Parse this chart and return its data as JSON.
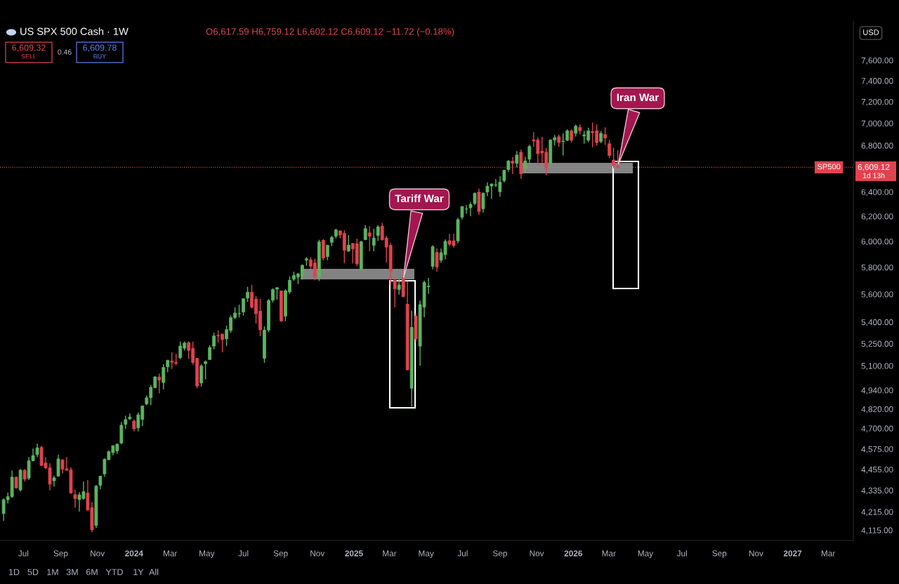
{
  "chart_data": {
    "type": "candlestick",
    "title": "US SPX 500 Cash · 1W",
    "log": true,
    "xlim": [
      "2023-05-23",
      "2027-04-12"
    ],
    "xticks": [
      {
        "value": "2023-07-01",
        "label": "Jul"
      },
      {
        "value": "2023-09-01",
        "label": "Sep"
      },
      {
        "value": "2023-11-01",
        "label": "Nov"
      },
      {
        "value": "2024-01-01",
        "label": "2024"
      },
      {
        "value": "2024-03-01",
        "label": "Mar"
      },
      {
        "value": "2024-05-01",
        "label": "May"
      },
      {
        "value": "2024-07-01",
        "label": "Jul"
      },
      {
        "value": "2024-09-01",
        "label": "Sep"
      },
      {
        "value": "2024-11-01",
        "label": "Nov"
      },
      {
        "value": "2025-01-01",
        "label": "2025"
      },
      {
        "value": "2025-03-01",
        "label": "Mar"
      },
      {
        "value": "2025-05-01",
        "label": "May"
      },
      {
        "value": "2025-07-01",
        "label": "Jul"
      },
      {
        "value": "2025-09-01",
        "label": "Sep"
      },
      {
        "value": "2025-11-01",
        "label": "Nov"
      },
      {
        "value": "2026-01-01",
        "label": "2026"
      },
      {
        "value": "2026-03-01",
        "label": "Mar"
      },
      {
        "value": "2026-05-01",
        "label": "May"
      },
      {
        "value": "2026-07-01",
        "label": "Jul"
      },
      {
        "value": "2026-09-01",
        "label": "Sep"
      },
      {
        "value": "2026-11-01",
        "label": "Nov"
      },
      {
        "value": "2027-01-01",
        "label": "2027"
      },
      {
        "value": "2027-03-01",
        "label": "Mar"
      }
    ],
    "ylim": [
      4060,
      8000
    ],
    "yticks": [
      {
        "value": 4115,
        "label": "4,115.00"
      },
      {
        "value": 4215,
        "label": "4,215.00"
      },
      {
        "value": 4335,
        "label": "4,335.00"
      },
      {
        "value": 4455,
        "label": "4,455.00"
      },
      {
        "value": 4575,
        "label": "4,575.00"
      },
      {
        "value": 4700,
        "label": "4,700.00"
      },
      {
        "value": 4820,
        "label": "4,820.00"
      },
      {
        "value": 4940,
        "label": "4,940.00"
      },
      {
        "value": 5100,
        "label": "5,100.00"
      },
      {
        "value": 5250,
        "label": "5,250.00"
      },
      {
        "value": 5400,
        "label": "5,400.00"
      },
      {
        "value": 5600,
        "label": "5,600.00"
      },
      {
        "value": 5800,
        "label": "5,800.00"
      },
      {
        "value": 6000,
        "label": "6,000.00"
      },
      {
        "value": 6200,
        "label": "6,200.00"
      },
      {
        "value": 6400,
        "label": "6,400.00"
      },
      {
        "value": 6800,
        "label": "6,800.00"
      },
      {
        "value": 7000,
        "label": "7,000.00"
      },
      {
        "value": 7200,
        "label": "7,200.00"
      },
      {
        "value": 7400,
        "label": "7,400.00"
      },
      {
        "value": 7600,
        "label": "7,600.00"
      }
    ],
    "ref_lines": [
      {
        "axis": "y",
        "value": 6609.12,
        "label": "SP500",
        "color": "#e0434f",
        "line_style": "dotted"
      }
    ],
    "annotations": [
      {
        "text": "Iran War",
        "x": "2026-03-16",
        "y": 6620
      },
      {
        "text": "Tariff War",
        "x": "2025-03-24",
        "y": 5710
      },
      "O6,617.59 H6,759.12 L6,602.12 C6,609.12 −11.72 (−0.18%)",
      "6,609.32",
      "SELL",
      "0.46",
      "6,609.78",
      "BUY",
      "USD",
      "6,609.12",
      "1d 13h",
      "1D",
      "5D",
      "1M",
      "3M",
      "6M",
      "YTD",
      "1Y",
      "All"
    ],
    "series": [
      {
        "color": "#5cb460",
        "x": [
          "2023-05-29",
          "2023-06-05",
          "2023-06-12",
          "2023-06-26",
          "2023-07-10",
          "2023-07-17",
          "2023-07-24",
          "2023-08-21",
          "2023-08-28",
          "2023-10-02",
          "2023-10-09",
          "2023-10-30",
          "2023-11-06",
          "2023-11-13",
          "2023-11-20",
          "2023-11-27",
          "2023-12-04",
          "2023-12-11",
          "2023-12-18",
          "2023-12-25",
          "2024-01-08",
          "2024-01-15",
          "2024-01-22",
          "2024-01-29",
          "2024-02-05",
          "2024-02-19",
          "2024-02-26",
          "2024-03-18",
          "2024-03-25",
          "2024-04-22",
          "2024-04-29",
          "2024-05-06",
          "2024-05-13",
          "2024-06-03",
          "2024-06-10",
          "2024-06-17",
          "2024-06-24",
          "2024-07-01",
          "2024-07-08",
          "2024-08-05",
          "2024-08-12",
          "2024-08-19",
          "2024-08-26",
          "2024-09-09",
          "2024-09-16",
          "2024-09-23",
          "2024-09-30",
          "2024-10-07",
          "2024-10-14",
          "2024-11-04",
          "2024-11-18",
          "2024-11-25",
          "2024-12-02",
          "2024-12-23",
          "2025-01-13",
          "2025-01-20",
          "2025-02-03",
          "2025-02-10",
          "2025-03-17",
          "2025-04-07",
          "2025-04-21",
          "2025-04-28",
          "2025-05-05",
          "2025-05-12",
          "2025-05-26",
          "2025-06-02",
          "2025-06-23",
          "2025-06-30",
          "2025-07-07",
          "2025-07-14",
          "2025-07-21",
          "2025-08-04",
          "2025-08-11",
          "2025-08-18",
          "2025-08-25",
          "2025-09-01",
          "2025-09-08",
          "2025-09-15",
          "2025-09-29",
          "2025-10-13",
          "2025-10-20",
          "2025-11-24",
          "2025-12-01",
          "2025-12-15",
          "2025-12-22",
          "2026-01-05",
          "2026-01-19",
          "2026-01-26",
          "2026-02-16"
        ],
        "ohlc": [
          [
            4205,
            4290,
            4166,
            4282
          ],
          [
            4282,
            4322,
            4261,
            4299
          ],
          [
            4299,
            4448,
            4292,
            4410
          ],
          [
            4337,
            4458,
            4328,
            4450
          ],
          [
            4404,
            4527,
            4394,
            4505
          ],
          [
            4505,
            4578,
            4502,
            4536
          ],
          [
            4543,
            4607,
            4527,
            4582
          ],
          [
            4389,
            4418,
            4356,
            4406
          ],
          [
            4416,
            4541,
            4415,
            4516
          ],
          [
            4284,
            4324,
            4216,
            4309
          ],
          [
            4289,
            4385,
            4283,
            4327
          ],
          [
            4140,
            4366,
            4127,
            4358
          ],
          [
            4364,
            4418,
            4340,
            4415
          ],
          [
            4429,
            4521,
            4412,
            4514
          ],
          [
            4511,
            4568,
            4511,
            4559
          ],
          [
            4554,
            4595,
            4537,
            4595
          ],
          [
            4564,
            4609,
            4546,
            4604
          ],
          [
            4611,
            4739,
            4604,
            4719
          ],
          [
            4725,
            4778,
            4697,
            4754
          ],
          [
            4759,
            4793,
            4751,
            4770
          ],
          [
            4703,
            4798,
            4682,
            4784
          ],
          [
            4756,
            4842,
            4714,
            4840
          ],
          [
            4853,
            4907,
            4845,
            4891
          ],
          [
            4892,
            4975,
            4845,
            4959
          ],
          [
            4957,
            5030,
            4953,
            5027
          ],
          [
            4990,
            5111,
            4946,
            5089
          ],
          [
            5094,
            5140,
            5057,
            5137
          ],
          [
            5154,
            5265,
            5145,
            5234
          ],
          [
            5219,
            5265,
            5203,
            5254
          ],
          [
            4987,
            5112,
            4963,
            5100
          ],
          [
            5114,
            5136,
            5011,
            5128
          ],
          [
            5142,
            5239,
            5142,
            5223
          ],
          [
            5233,
            5325,
            5211,
            5303
          ],
          [
            5283,
            5375,
            5234,
            5347
          ],
          [
            5341,
            5447,
            5324,
            5431
          ],
          [
            5432,
            5505,
            5420,
            5464
          ],
          [
            5460,
            5524,
            5433,
            5460
          ],
          [
            5471,
            5570,
            5446,
            5567
          ],
          [
            5572,
            5655,
            5544,
            5615
          ],
          [
            5151,
            5370,
            5120,
            5344
          ],
          [
            5344,
            5564,
            5329,
            5554
          ],
          [
            5557,
            5643,
            5540,
            5634
          ],
          [
            5637,
            5651,
            5561,
            5648
          ],
          [
            5442,
            5636,
            5406,
            5626
          ],
          [
            5616,
            5733,
            5604,
            5703
          ],
          [
            5711,
            5767,
            5698,
            5738
          ],
          [
            5726,
            5758,
            5674,
            5751
          ],
          [
            5737,
            5822,
            5707,
            5815
          ],
          [
            5855,
            5878,
            5813,
            5865
          ],
          [
            5724,
            6012,
            5697,
            5996
          ],
          [
            5882,
            5974,
            5854,
            5969
          ],
          [
            5992,
            6044,
            5963,
            6032
          ],
          [
            6041,
            6099,
            6024,
            6090
          ],
          [
            5924,
            6049,
            5919,
            5971
          ],
          [
            5788,
            6005,
            5773,
            5997
          ],
          [
            6014,
            6128,
            6009,
            6101
          ],
          [
            5969,
            6101,
            5923,
            6026
          ],
          [
            6046,
            6128,
            6004,
            6115
          ],
          [
            5635,
            5711,
            5597,
            5668
          ],
          [
            4953,
            5482,
            4835,
            5363
          ],
          [
            5233,
            5553,
            5101,
            5525
          ],
          [
            5507,
            5700,
            5434,
            5687
          ],
          [
            5655,
            5720,
            5602,
            5660
          ],
          [
            5808,
            5969,
            5786,
            5958
          ],
          [
            5854,
            5944,
            5834,
            5912
          ],
          [
            5897,
            6016,
            5861,
            6000
          ],
          [
            6004,
            6187,
            5986,
            6173
          ],
          [
            6193,
            6284,
            6174,
            6279
          ],
          [
            6259,
            6291,
            6220,
            6260
          ],
          [
            6269,
            6315,
            6201,
            6297
          ],
          [
            6304,
            6395,
            6290,
            6389
          ],
          [
            6261,
            6395,
            6230,
            6389
          ],
          [
            6400,
            6481,
            6364,
            6449
          ],
          [
            6450,
            6471,
            6343,
            6467
          ],
          [
            6457,
            6509,
            6441,
            6460
          ],
          [
            6402,
            6532,
            6360,
            6482
          ],
          [
            6495,
            6588,
            6480,
            6584
          ],
          [
            6590,
            6672,
            6570,
            6664
          ],
          [
            6643,
            6751,
            6610,
            6716
          ],
          [
            6600,
            6700,
            6570,
            6664
          ],
          [
            6680,
            6808,
            6645,
            6792
          ],
          [
            6640,
            6855,
            6620,
            6849
          ],
          [
            6849,
            6895,
            6800,
            6870
          ],
          [
            6835,
            6909,
            6712,
            6840
          ],
          [
            6847,
            6945,
            6840,
            6932
          ],
          [
            6909,
            6986,
            6880,
            6974
          ],
          [
            6885,
            6932,
            6816,
            6895
          ],
          [
            6847,
            6960,
            6830,
            6932
          ],
          [
            6836,
            6930,
            6820,
            6909
          ]
        ]
      },
      {
        "color": "#e0434f",
        "x": [
          "2023-06-19",
          "2023-07-03",
          "2023-07-31",
          "2023-08-07",
          "2023-08-14",
          "2023-09-04",
          "2023-09-11",
          "2023-09-18",
          "2023-09-25",
          "2023-10-16",
          "2023-10-23",
          "2024-01-01",
          "2024-02-12",
          "2024-03-04",
          "2024-03-11",
          "2024-04-01",
          "2024-04-08",
          "2024-04-15",
          "2024-05-20",
          "2024-05-27",
          "2024-07-15",
          "2024-07-22",
          "2024-07-29",
          "2024-09-02",
          "2024-10-21",
          "2024-10-28",
          "2024-11-11",
          "2024-12-09",
          "2024-12-16",
          "2024-12-30",
          "2025-01-06",
          "2025-01-27",
          "2025-02-17",
          "2025-02-24",
          "2025-03-03",
          "2025-03-10",
          "2025-03-24",
          "2025-03-31",
          "2025-04-14",
          "2025-05-19",
          "2025-06-09",
          "2025-06-16",
          "2025-07-28",
          "2025-09-22",
          "2025-10-06",
          "2025-10-27",
          "2025-11-03",
          "2025-11-10",
          "2025-11-17",
          "2025-12-08",
          "2025-12-29",
          "2026-01-12",
          "2026-02-02",
          "2026-02-09",
          "2026-02-23",
          "2026-03-02",
          "2026-03-09",
          "2026-03-16"
        ],
        "ohlc": [
          [
            4410,
            4413,
            4345,
            4348
          ],
          [
            4450,
            4456,
            4385,
            4399
          ],
          [
            4585,
            4595,
            4474,
            4478
          ],
          [
            4492,
            4527,
            4457,
            4464
          ],
          [
            4464,
            4491,
            4335,
            4370
          ],
          [
            4510,
            4515,
            4431,
            4457
          ],
          [
            4458,
            4527,
            4448,
            4450
          ],
          [
            4453,
            4466,
            4316,
            4320
          ],
          [
            4310,
            4338,
            4238,
            4288
          ],
          [
            4320,
            4393,
            4223,
            4224
          ],
          [
            4238,
            4268,
            4104,
            4117
          ],
          [
            4745,
            4755,
            4682,
            4697
          ],
          [
            5026,
            5048,
            4920,
            5006
          ],
          [
            5132,
            5190,
            5080,
            5124
          ],
          [
            5123,
            5180,
            5104,
            5117
          ],
          [
            5257,
            5265,
            5146,
            5204
          ],
          [
            5218,
            5264,
            5107,
            5123
          ],
          [
            5150,
            5152,
            4953,
            4967
          ],
          [
            5308,
            5342,
            5256,
            5305
          ],
          [
            5316,
            5316,
            5191,
            5278
          ],
          [
            5614,
            5669,
            5497,
            5505
          ],
          [
            5565,
            5585,
            5390,
            5459
          ],
          [
            5477,
            5566,
            5302,
            5346
          ],
          [
            5624,
            5626,
            5402,
            5408
          ],
          [
            5857,
            5878,
            5787,
            5808
          ],
          [
            5833,
            5866,
            5703,
            5729
          ],
          [
            6008,
            6018,
            5853,
            5871
          ],
          [
            6083,
            6085,
            6024,
            6051
          ],
          [
            6063,
            6086,
            5832,
            5931
          ],
          [
            5984,
            5985,
            5829,
            5942
          ],
          [
            5982,
            6021,
            5809,
            5827
          ],
          [
            6067,
            6120,
            5923,
            6041
          ],
          [
            6121,
            6147,
            6008,
            6013
          ],
          [
            6026,
            6043,
            5837,
            5955
          ],
          [
            5969,
            5987,
            5666,
            5770
          ],
          [
            5705,
            5705,
            5505,
            5639
          ],
          [
            5718,
            5786,
            5581,
            5581
          ],
          [
            5527,
            5695,
            5069,
            5074
          ],
          [
            5442,
            5460,
            5262,
            5283
          ],
          [
            5914,
            5945,
            5768,
            5803
          ],
          [
            6005,
            6060,
            5963,
            5977
          ],
          [
            6004,
            6060,
            5952,
            5967
          ],
          [
            6398,
            6427,
            6213,
            6238
          ],
          [
            6662,
            6699,
            6551,
            6644
          ],
          [
            6740,
            6765,
            6510,
            6553
          ],
          [
            6850,
            6920,
            6790,
            6840
          ],
          [
            6850,
            6870,
            6630,
            6728
          ],
          [
            6750,
            6878,
            6650,
            6734
          ],
          [
            6741,
            6780,
            6540,
            6603
          ],
          [
            6878,
            6900,
            6790,
            6827
          ],
          [
            6932,
            6945,
            6825,
            6847
          ],
          [
            6963,
            6990,
            6900,
            6932
          ],
          [
            6925,
            7006,
            6785,
            6915
          ],
          [
            6932,
            6990,
            6800,
            6826
          ],
          [
            6898,
            6963,
            6805,
            6868
          ],
          [
            6816,
            6850,
            6690,
            6712
          ],
          [
            6672,
            6780,
            6600,
            6623
          ],
          [
            6617.59,
            6759.12,
            6602.12,
            6609.12
          ]
        ]
      }
    ]
  }
}
